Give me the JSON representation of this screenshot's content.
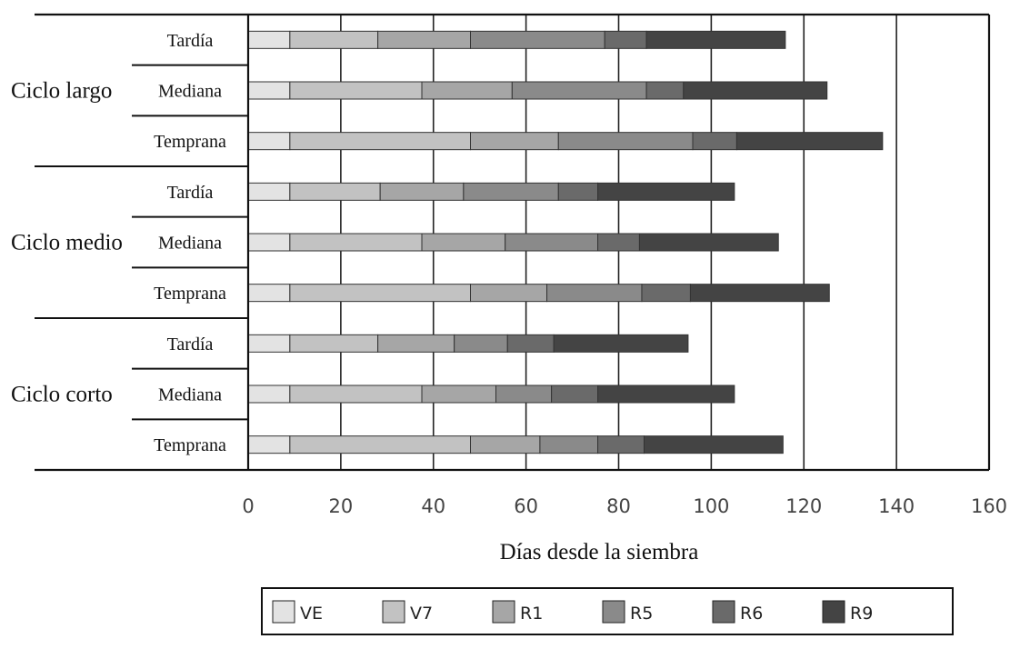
{
  "chart_data": {
    "type": "bar",
    "orientation": "horizontal",
    "stacked": true,
    "xlabel": "Días desde la siembra",
    "xlim": [
      0,
      160
    ],
    "xticks": [
      0,
      20,
      40,
      60,
      80,
      100,
      120,
      140,
      160
    ],
    "grid": "vertical",
    "legend_position": "bottom",
    "series_names": [
      "VE",
      "V7",
      "R1",
      "R5",
      "R6",
      "R9"
    ],
    "colors": [
      "#e3e3e3",
      "#c2c2c2",
      "#a6a6a6",
      "#8a8a8a",
      "#6a6a6a",
      "#444444"
    ],
    "groups": [
      {
        "name": "Ciclo largo",
        "rows": [
          {
            "label": "Tardía",
            "values": [
              9,
              19,
              20,
              29,
              9,
              30
            ]
          },
          {
            "label": "Mediana",
            "values": [
              9,
              28.5,
              19.5,
              29,
              8,
              31
            ]
          },
          {
            "label": "Temprana",
            "values": [
              9,
              39,
              19,
              29,
              9.5,
              31.5
            ]
          }
        ]
      },
      {
        "name": "Ciclo medio",
        "rows": [
          {
            "label": "Tardía",
            "values": [
              9,
              19.5,
              18,
              20.5,
              8.5,
              29.5
            ]
          },
          {
            "label": "Mediana",
            "values": [
              9,
              28.5,
              18,
              20,
              9,
              30
            ]
          },
          {
            "label": "Temprana",
            "values": [
              9,
              39,
              16.5,
              20.5,
              10.5,
              30
            ]
          }
        ]
      },
      {
        "name": "Ciclo corto",
        "rows": [
          {
            "label": "Tardía",
            "values": [
              9,
              19,
              16.5,
              11.5,
              10,
              29
            ]
          },
          {
            "label": "Mediana",
            "values": [
              9,
              28.5,
              16,
              12,
              10,
              29.5
            ]
          },
          {
            "label": "Temprana",
            "values": [
              9,
              39,
              15,
              12.5,
              10,
              30
            ]
          }
        ]
      }
    ]
  }
}
